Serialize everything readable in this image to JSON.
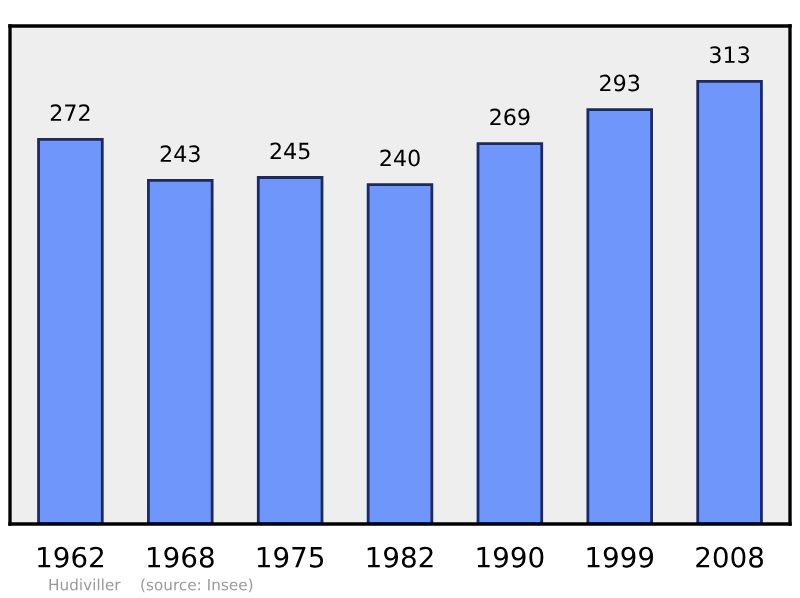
{
  "chart_data": {
    "type": "bar",
    "categories": [
      "1962",
      "1968",
      "1975",
      "1982",
      "1990",
      "1999",
      "2008"
    ],
    "values": [
      272,
      243,
      245,
      240,
      269,
      293,
      313
    ],
    "color": "#6f96fb",
    "data_labels": true,
    "grid": false,
    "legend": false,
    "annotations": [
      "Hudiviller    (source: Insee)"
    ]
  }
}
